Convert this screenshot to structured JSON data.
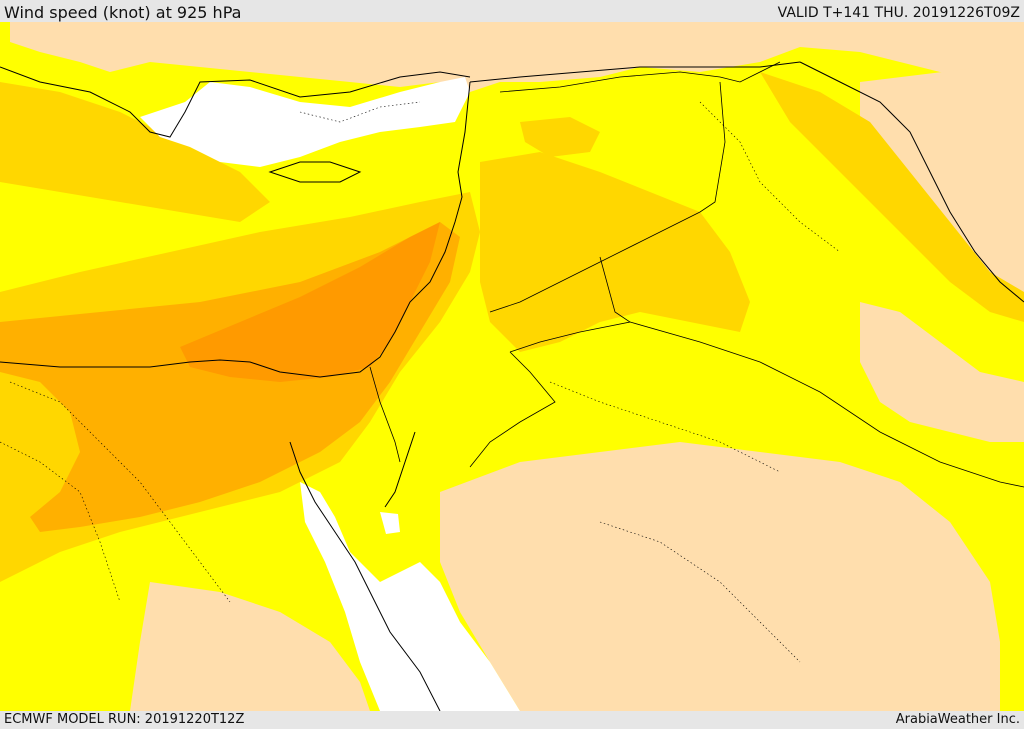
{
  "header": {
    "title": "Wind speed (knot) at 925 hPa",
    "valid_time": "VALID T+141 THU. 20191226T09Z"
  },
  "footer": {
    "model_run": "ECMWF MODEL RUN: 20191220T12Z",
    "credit": "ArabiaWeather Inc."
  },
  "map": {
    "region": "Eastern Mediterranean, Levant and Arabian Peninsula",
    "colors": {
      "sea_calm": "#ffffff",
      "band_low": "#ffdead",
      "band_mid": "#ffff00",
      "band_moderate": "#ffd700",
      "band_high": "#ffb000",
      "band_max": "#ff9a00",
      "border_line": "#000000"
    }
  }
}
